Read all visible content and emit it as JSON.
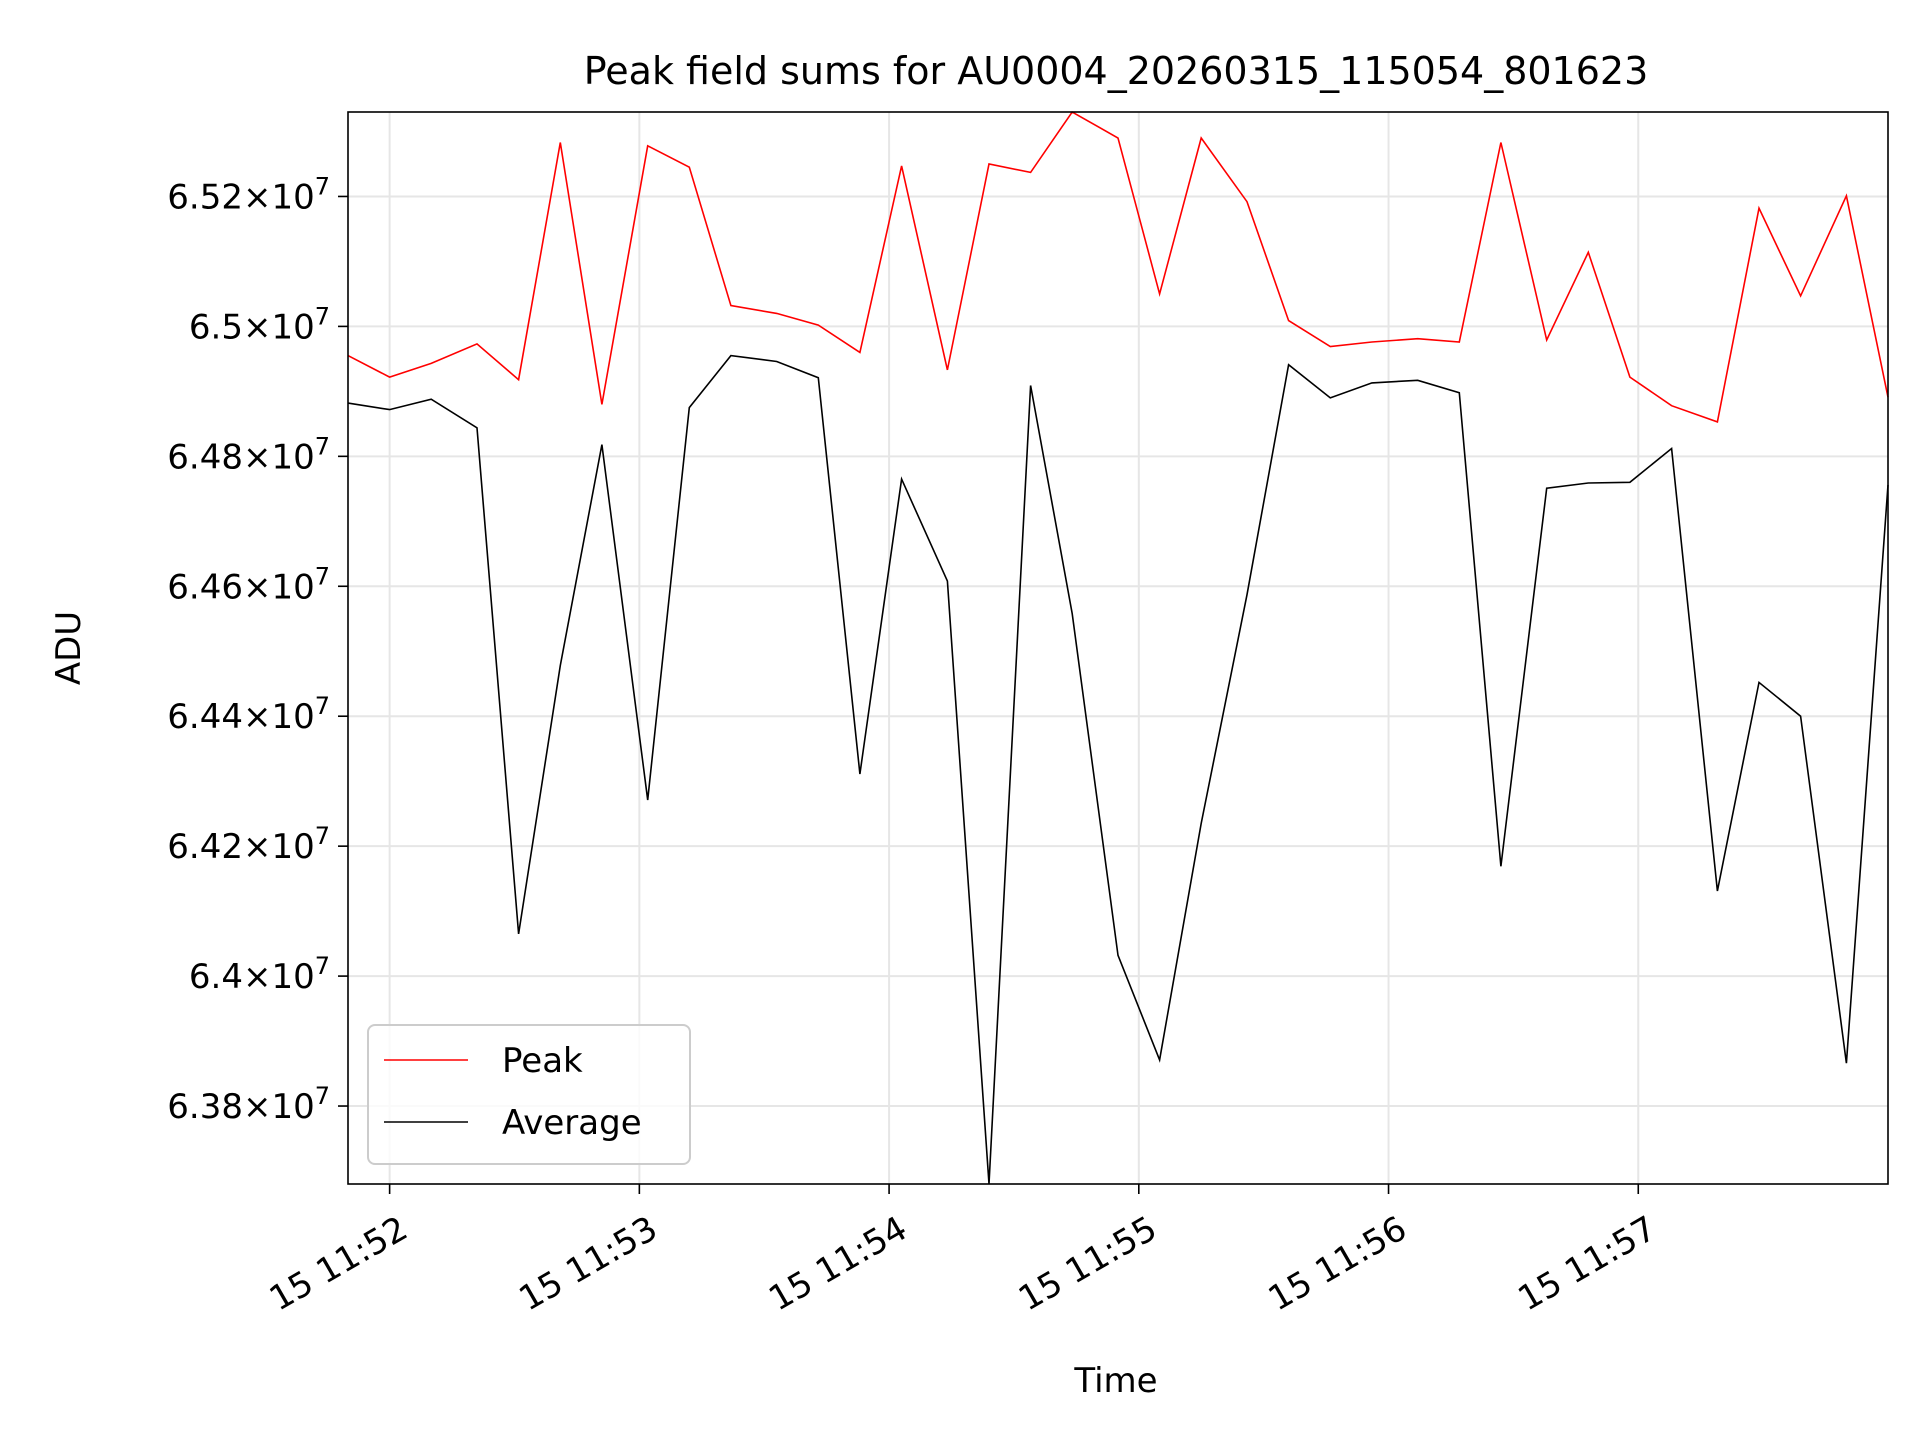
{
  "chart_data": {
    "type": "line",
    "title": "Peak field sums for AU0004_20260315_115054_801623",
    "xlabel": "Time",
    "ylabel": "ADU",
    "grid": true,
    "legend_position": "lower-left",
    "xlim": [
      "2026-03-15 11:51:50",
      "2026-03-15 11:58:00"
    ],
    "ylim": [
      63680000,
      65330000
    ],
    "x_ticks": [
      {
        "value": "2026-03-15 11:52:00",
        "label": "15 11:52"
      },
      {
        "value": "2026-03-15 11:53:00",
        "label": "15 11:53"
      },
      {
        "value": "2026-03-15 11:54:00",
        "label": "15 11:54"
      },
      {
        "value": "2026-03-15 11:55:00",
        "label": "15 11:55"
      },
      {
        "value": "2026-03-15 11:56:00",
        "label": "15 11:56"
      },
      {
        "value": "2026-03-15 11:57:00",
        "label": "15 11:57"
      }
    ],
    "y_ticks": [
      {
        "value": 63800000,
        "mantissa": "6.38"
      },
      {
        "value": 64000000,
        "mantissa": "6.4"
      },
      {
        "value": 64200000,
        "mantissa": "6.42"
      },
      {
        "value": 64400000,
        "mantissa": "6.44"
      },
      {
        "value": 64600000,
        "mantissa": "6.46"
      },
      {
        "value": 64800000,
        "mantissa": "6.48"
      },
      {
        "value": 65000000,
        "mantissa": "6.5"
      },
      {
        "value": 65200000,
        "mantissa": "6.52"
      }
    ],
    "y_tick_base": "10",
    "y_tick_exponent": "7",
    "x": [
      "2026-03-15 11:51:50",
      "2026-03-15 11:52:00",
      "2026-03-15 11:52:10",
      "2026-03-15 11:52:21",
      "2026-03-15 11:52:31",
      "2026-03-15 11:52:41",
      "2026-03-15 11:52:51",
      "2026-03-15 11:53:02",
      "2026-03-15 11:53:12",
      "2026-03-15 11:53:22",
      "2026-03-15 11:53:33",
      "2026-03-15 11:53:43",
      "2026-03-15 11:53:53",
      "2026-03-15 11:54:03",
      "2026-03-15 11:54:14",
      "2026-03-15 11:54:24",
      "2026-03-15 11:54:34",
      "2026-03-15 11:54:44",
      "2026-03-15 11:54:55",
      "2026-03-15 11:55:05",
      "2026-03-15 11:55:15",
      "2026-03-15 11:55:26",
      "2026-03-15 11:55:36",
      "2026-03-15 11:55:46",
      "2026-03-15 11:55:56",
      "2026-03-15 11:56:07",
      "2026-03-15 11:56:17",
      "2026-03-15 11:56:27",
      "2026-03-15 11:56:38",
      "2026-03-15 11:56:48",
      "2026-03-15 11:56:58",
      "2026-03-15 11:57:08",
      "2026-03-15 11:57:19",
      "2026-03-15 11:57:29",
      "2026-03-15 11:57:39",
      "2026-03-15 11:57:50",
      "2026-03-15 11:58:00"
    ],
    "series": [
      {
        "name": "Peak",
        "color": "#ff0000",
        "values": [
          64955000,
          64922000,
          64943000,
          64973000,
          64918000,
          65283000,
          64880000,
          65278000,
          65245000,
          65032000,
          65020000,
          65002000,
          64960000,
          65247000,
          64933000,
          65250000,
          65237000,
          65330000,
          65290000,
          65050000,
          65290000,
          65192000,
          65009000,
          64969000,
          64976000,
          64981000,
          64976000,
          65283000,
          64979000,
          65114000,
          64922000,
          64878000,
          64853000,
          65182000,
          65047000,
          65201000,
          64891000
        ]
      },
      {
        "name": "Average",
        "color": "#000000",
        "values": [
          64882000,
          64872000,
          64888000,
          64844000,
          64065000,
          64478000,
          64818000,
          64271000,
          64875000,
          64955000,
          64946000,
          64921000,
          64311000,
          64765000,
          64608000,
          63680000,
          64909000,
          64558000,
          64032000,
          63871000,
          64235000,
          64587000,
          64941000,
          64890000,
          64913000,
          64917000,
          64898000,
          64169000,
          64751000,
          64759000,
          64760000,
          64812000,
          64131000,
          64452000,
          64400000,
          63866000,
          64756000
        ]
      }
    ]
  }
}
